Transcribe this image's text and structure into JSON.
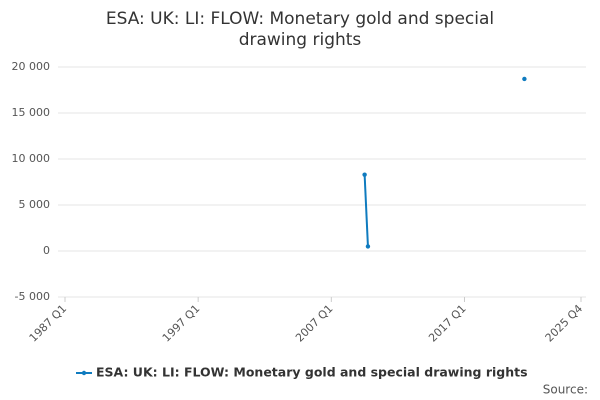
{
  "chart_data": {
    "type": "line",
    "title": "ESA: UK: LI: FLOW: Monetary gold and special drawing rights",
    "x": [
      "2009 Q3",
      "2009 Q4",
      "2021 Q3"
    ],
    "series": [
      {
        "name": "ESA: UK: LI: FLOW: Monetary gold and special drawing rights",
        "color": "#0f7bbf",
        "values": [
          8300,
          500,
          18700
        ]
      }
    ],
    "xlim": [
      "1987 Q1",
      "2025 Q4"
    ],
    "xticks": [
      "1987 Q1",
      "1997 Q1",
      "2007 Q1",
      "2017 Q1",
      "2025 Q4"
    ],
    "ylim": [
      -5000,
      20000
    ],
    "yticks": [
      {
        "value": -5000,
        "label": "-5 000"
      },
      0,
      {
        "value": 5000,
        "label": "5 000"
      },
      {
        "value": 10000,
        "label": "10 000"
      },
      {
        "value": 15000,
        "label": "15 000"
      },
      {
        "value": 20000,
        "label": "20 000"
      }
    ],
    "grid": true,
    "legend": "bottom",
    "source": "Source:"
  }
}
